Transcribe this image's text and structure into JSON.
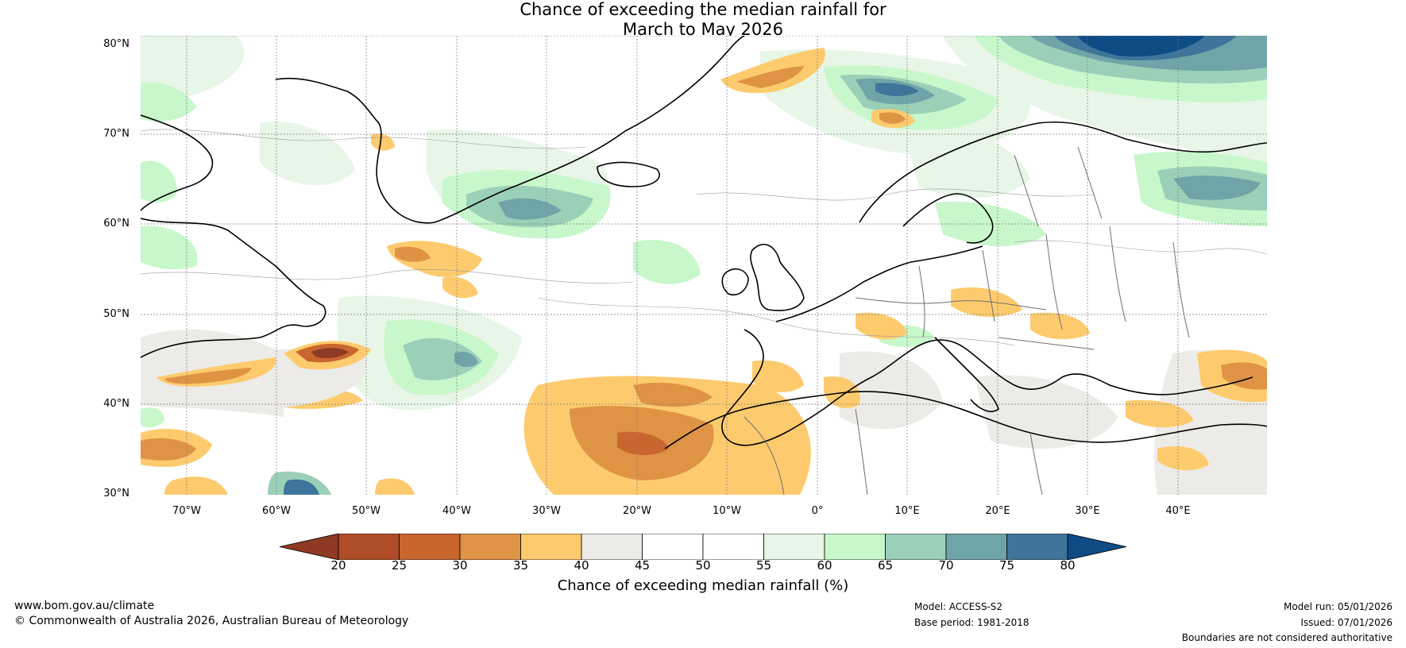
{
  "title": {
    "line1": "Chance of exceeding the median rainfall for",
    "line2": "March to May 2026"
  },
  "map": {
    "lat_labels": [
      "80°N",
      "70°N",
      "60°N",
      "50°N",
      "40°N",
      "30°N"
    ],
    "lon_labels": [
      "70°W",
      "60°W",
      "50°W",
      "40°W",
      "30°W",
      "20°W",
      "10°W",
      "0°",
      "10°E",
      "20°E",
      "30°E",
      "40°E"
    ]
  },
  "colorbar": {
    "label": "Chance of exceeding median rainfall (%)",
    "ticks": [
      "20",
      "25",
      "30",
      "35",
      "40",
      "45",
      "50",
      "55",
      "60",
      "65",
      "70",
      "75",
      "80"
    ],
    "colors": [
      "#8f3a22",
      "#b04d29",
      "#c9652f",
      "#df9345",
      "#fdcb6e",
      "#edebe7",
      "#ffffff",
      "#ffffff",
      "#e7f6e6",
      "#c7f7cb",
      "#9bd0b8",
      "#6fa5a9",
      "#3f759a",
      "#0f4c86"
    ]
  },
  "footer": {
    "website": "www.bom.gov.au/climate",
    "copyright": "© Commonwealth of Australia 2026, Australian Bureau of Meteorology",
    "model": "Model: ACCESS-S2",
    "base_period": "Base period: 1981-2018",
    "model_run": "Model run: 05/01/2026",
    "issued": "Issued: 07/01/2026",
    "disclaimer": "Boundaries are not considered authoritative"
  }
}
